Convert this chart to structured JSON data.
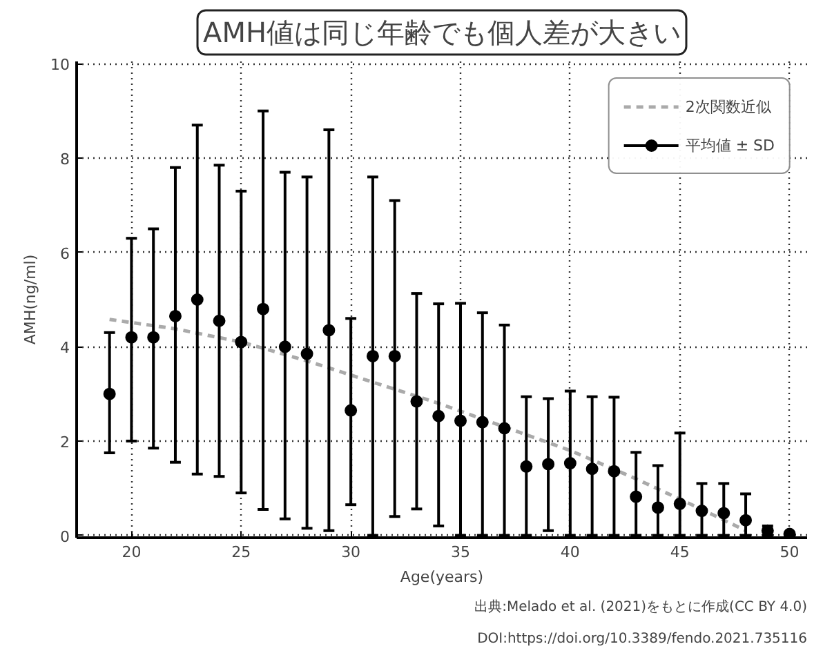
{
  "chart_data": {
    "type": "scatter",
    "title": "AMH値は同じ年齢でも個人差が大きい",
    "xlabel": "Age(years)",
    "ylabel": "AMH(ng/ml)",
    "x": [
      19,
      20,
      21,
      22,
      23,
      24,
      25,
      26,
      27,
      28,
      29,
      30,
      31,
      32,
      33,
      34,
      35,
      36,
      37,
      38,
      39,
      40,
      41,
      42,
      43,
      44,
      45,
      46,
      47,
      48,
      49,
      50
    ],
    "series": [
      {
        "name": "2次関数近似",
        "type": "line",
        "color": "#aaaaaa",
        "line_style": "dashed",
        "marker": "none",
        "x": [
          19,
          22,
          25,
          28,
          31,
          34,
          37,
          40,
          43,
          46,
          48
        ],
        "values": [
          4.58,
          4.38,
          4.1,
          3.7,
          3.25,
          2.8,
          2.3,
          1.8,
          1.2,
          0.55,
          0.1
        ]
      },
      {
        "name": "平均値 ± SD",
        "color": "#000000",
        "marker": "circle",
        "values": [
          3.0,
          4.2,
          4.2,
          4.65,
          5.0,
          4.55,
          4.1,
          4.8,
          4.0,
          3.85,
          4.35,
          2.65,
          3.8,
          3.8,
          2.84,
          2.53,
          2.43,
          2.4,
          2.27,
          1.46,
          1.51,
          1.53,
          1.41,
          1.36,
          0.82,
          0.59,
          0.67,
          0.52,
          0.47,
          0.32,
          0.1,
          0.03
        ],
        "errors": [
          [
            1.75,
            4.3
          ],
          [
            2.0,
            6.3
          ],
          [
            1.85,
            6.5
          ],
          [
            1.55,
            7.8
          ],
          [
            1.3,
            8.7
          ],
          [
            1.25,
            7.85
          ],
          [
            0.9,
            7.3
          ],
          [
            0.55,
            9.0
          ],
          [
            0.35,
            7.7
          ],
          [
            0.15,
            7.6
          ],
          [
            0.1,
            8.6
          ],
          [
            0.65,
            4.6
          ],
          [
            0.0,
            7.6
          ],
          [
            0.4,
            7.1
          ],
          [
            0.56,
            5.13
          ],
          [
            0.2,
            4.91
          ],
          [
            0.0,
            4.92
          ],
          [
            0.0,
            4.72
          ],
          [
            0.0,
            4.46
          ],
          [
            0.0,
            2.94
          ],
          [
            0.1,
            2.9
          ],
          [
            0.0,
            3.06
          ],
          [
            0.0,
            2.94
          ],
          [
            0.0,
            2.93
          ],
          [
            0.0,
            1.76
          ],
          [
            0.0,
            1.48
          ],
          [
            0.0,
            2.17
          ],
          [
            0.0,
            1.1
          ],
          [
            0.0,
            1.1
          ],
          [
            0.0,
            0.88
          ],
          [
            0.0,
            0.2
          ],
          [
            0.0,
            0.05
          ]
        ]
      }
    ],
    "xlim": [
      17.5,
      50.8
    ],
    "ylim": [
      -0.05,
      10.05
    ],
    "xticks": [
      20,
      25,
      30,
      35,
      40,
      45,
      50
    ],
    "yticks": [
      0,
      2,
      4,
      6,
      8,
      10
    ],
    "grid": true,
    "legend": "top right",
    "annotations": [
      "出典:Melado et al. (2021)をもとに作成(CC BY 4.0)",
      "DOI:https://doi.org/10.3389/fendo.2021.735116"
    ]
  }
}
